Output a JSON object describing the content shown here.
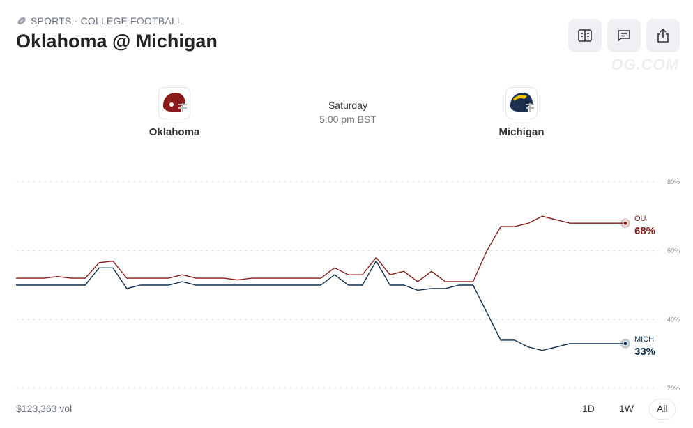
{
  "header": {
    "category": "SPORTS · COLLEGE FOOTBALL",
    "title": "Oklahoma @ Michigan",
    "watermark": "OG.COM"
  },
  "matchup": {
    "home": "Oklahoma",
    "away": "Michigan",
    "day": "Saturday",
    "time": "5:00 pm BST"
  },
  "footer": {
    "volume": "$123,363 vol",
    "ranges": [
      "1D",
      "1W",
      "All"
    ],
    "selected": 2
  },
  "chart_data": {
    "type": "line",
    "ylim": [
      20,
      80
    ],
    "yticks": [
      {
        "value": 20,
        "label": "20%"
      },
      {
        "value": 40,
        "label": "40%"
      },
      {
        "value": 60,
        "label": "60%"
      },
      {
        "value": 80,
        "label": "80%"
      }
    ],
    "grid": true,
    "series": [
      {
        "name": "OU",
        "color": "#8b1a1a",
        "end_label": "68%",
        "values": [
          52,
          52,
          52,
          52.5,
          52,
          52,
          56.5,
          57,
          52,
          52,
          52,
          52,
          53,
          52,
          52,
          52,
          51.5,
          52,
          52,
          52,
          52,
          52,
          52,
          55,
          53,
          53,
          58,
          53,
          54,
          51,
          54,
          51,
          51,
          51,
          60,
          67,
          67,
          68,
          70,
          69,
          68,
          68,
          68,
          68,
          68
        ]
      },
      {
        "name": "MICH",
        "color": "#0f2f4f",
        "end_label": "33%",
        "values": [
          50,
          50,
          50,
          50,
          50,
          50,
          55,
          55,
          49,
          50,
          50,
          50,
          51,
          50,
          50,
          50,
          50,
          50,
          50,
          50,
          50,
          50,
          50,
          53,
          50,
          50,
          57,
          50,
          50,
          48.5,
          49,
          49,
          50,
          50,
          42,
          34,
          34,
          32,
          31,
          32,
          33,
          33,
          33,
          33,
          33
        ]
      }
    ]
  }
}
